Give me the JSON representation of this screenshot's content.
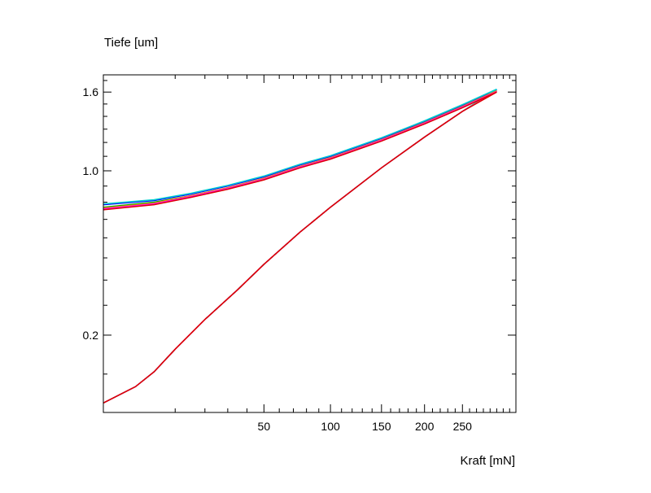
{
  "chart_data": {
    "type": "line",
    "title": "",
    "ylabel": "Tiefe  [um]",
    "xlabel": "Kraft  [mN]",
    "x_scale": "sqrt",
    "y_scale": "sqrt",
    "xlim": [
      0,
      330
    ],
    "ylim": [
      0.035,
      1.75
    ],
    "x_ticks": [
      {
        "value": 50,
        "label": "50"
      },
      {
        "value": 100,
        "label": "100"
      },
      {
        "value": 150,
        "label": "150"
      },
      {
        "value": 200,
        "label": "200"
      },
      {
        "value": 250,
        "label": "250"
      }
    ],
    "y_ticks": [
      {
        "value": 0.2,
        "label": "0.2"
      },
      {
        "value": 1.0,
        "label": "1.0"
      },
      {
        "value": 1.6,
        "label": "1.6"
      }
    ],
    "grid": false,
    "legend": "none",
    "series": [
      {
        "color": "#0000ff",
        "loading": [
          [
            0,
            0.048
          ],
          [
            2,
            0.075
          ],
          [
            5,
            0.105
          ],
          [
            10,
            0.16
          ],
          [
            20,
            0.25
          ],
          [
            35,
            0.36
          ],
          [
            50,
            0.47
          ],
          [
            75,
            0.63
          ],
          [
            100,
            0.77
          ],
          [
            150,
            1.02
          ],
          [
            200,
            1.24
          ],
          [
            250,
            1.44
          ],
          [
            300,
            1.62
          ]
        ],
        "unloading": [
          [
            300,
            1.62
          ],
          [
            250,
            1.49
          ],
          [
            200,
            1.36
          ],
          [
            150,
            1.23
          ],
          [
            100,
            1.1
          ],
          [
            75,
            1.04
          ],
          [
            50,
            0.96
          ],
          [
            30,
            0.9
          ],
          [
            15,
            0.85
          ],
          [
            5,
            0.81
          ],
          [
            0,
            0.785
          ]
        ]
      },
      {
        "color": "#00d0d0",
        "loading": [
          [
            0,
            0.048
          ],
          [
            2,
            0.075
          ],
          [
            5,
            0.105
          ],
          [
            10,
            0.16
          ],
          [
            20,
            0.25
          ],
          [
            35,
            0.36
          ],
          [
            50,
            0.47
          ],
          [
            75,
            0.63
          ],
          [
            100,
            0.77
          ],
          [
            150,
            1.02
          ],
          [
            200,
            1.24
          ],
          [
            250,
            1.44
          ],
          [
            300,
            1.625
          ]
        ],
        "unloading": [
          [
            300,
            1.625
          ],
          [
            250,
            1.495
          ],
          [
            200,
            1.365
          ],
          [
            150,
            1.235
          ],
          [
            100,
            1.105
          ],
          [
            75,
            1.045
          ],
          [
            50,
            0.965
          ],
          [
            30,
            0.905
          ],
          [
            15,
            0.855
          ],
          [
            5,
            0.815
          ],
          [
            0,
            0.79
          ]
        ]
      },
      {
        "color": "#00aa00",
        "loading": [
          [
            0,
            0.048
          ],
          [
            2,
            0.075
          ],
          [
            5,
            0.105
          ],
          [
            10,
            0.16
          ],
          [
            20,
            0.25
          ],
          [
            35,
            0.36
          ],
          [
            50,
            0.47
          ],
          [
            75,
            0.63
          ],
          [
            100,
            0.77
          ],
          [
            150,
            1.02
          ],
          [
            200,
            1.24
          ],
          [
            250,
            1.44
          ],
          [
            300,
            1.61
          ]
        ],
        "unloading": [
          [
            300,
            1.61
          ],
          [
            250,
            1.48
          ],
          [
            200,
            1.35
          ],
          [
            150,
            1.22
          ],
          [
            100,
            1.09
          ],
          [
            75,
            1.03
          ],
          [
            50,
            0.95
          ],
          [
            30,
            0.89
          ],
          [
            15,
            0.84
          ],
          [
            5,
            0.8
          ],
          [
            0,
            0.77
          ]
        ]
      },
      {
        "color": "#ff8800",
        "loading": [
          [
            0,
            0.048
          ],
          [
            2,
            0.075
          ],
          [
            5,
            0.105
          ],
          [
            10,
            0.16
          ],
          [
            20,
            0.25
          ],
          [
            35,
            0.36
          ],
          [
            50,
            0.47
          ],
          [
            75,
            0.63
          ],
          [
            100,
            0.77
          ],
          [
            150,
            1.02
          ],
          [
            200,
            1.24
          ],
          [
            250,
            1.44
          ],
          [
            300,
            1.61
          ]
        ],
        "unloading": [
          [
            300,
            1.61
          ],
          [
            250,
            1.48
          ],
          [
            200,
            1.35
          ],
          [
            150,
            1.22
          ],
          [
            100,
            1.09
          ],
          [
            75,
            1.03
          ],
          [
            50,
            0.95
          ],
          [
            30,
            0.89
          ],
          [
            15,
            0.84
          ],
          [
            5,
            0.795
          ],
          [
            0,
            0.765
          ]
        ]
      },
      {
        "color": "#ff00ff",
        "loading": [
          [
            0,
            0.048
          ],
          [
            2,
            0.075
          ],
          [
            5,
            0.105
          ],
          [
            10,
            0.16
          ],
          [
            20,
            0.25
          ],
          [
            35,
            0.36
          ],
          [
            50,
            0.47
          ],
          [
            75,
            0.63
          ],
          [
            100,
            0.77
          ],
          [
            150,
            1.02
          ],
          [
            200,
            1.24
          ],
          [
            250,
            1.44
          ],
          [
            300,
            1.605
          ]
        ],
        "unloading": [
          [
            300,
            1.605
          ],
          [
            250,
            1.475
          ],
          [
            200,
            1.345
          ],
          [
            150,
            1.215
          ],
          [
            100,
            1.085
          ],
          [
            75,
            1.025
          ],
          [
            50,
            0.945
          ],
          [
            30,
            0.885
          ],
          [
            15,
            0.835
          ],
          [
            5,
            0.79
          ],
          [
            0,
            0.76
          ]
        ]
      },
      {
        "color": "#dd0000",
        "loading": [
          [
            0,
            0.048
          ],
          [
            2,
            0.075
          ],
          [
            5,
            0.105
          ],
          [
            10,
            0.16
          ],
          [
            20,
            0.25
          ],
          [
            35,
            0.36
          ],
          [
            50,
            0.47
          ],
          [
            75,
            0.63
          ],
          [
            100,
            0.77
          ],
          [
            150,
            1.02
          ],
          [
            200,
            1.24
          ],
          [
            250,
            1.44
          ],
          [
            300,
            1.6
          ]
        ],
        "unloading": [
          [
            300,
            1.6
          ],
          [
            250,
            1.47
          ],
          [
            200,
            1.34
          ],
          [
            150,
            1.21
          ],
          [
            100,
            1.08
          ],
          [
            75,
            1.02
          ],
          [
            50,
            0.94
          ],
          [
            30,
            0.88
          ],
          [
            15,
            0.83
          ],
          [
            5,
            0.785
          ],
          [
            0,
            0.755
          ]
        ]
      }
    ]
  }
}
